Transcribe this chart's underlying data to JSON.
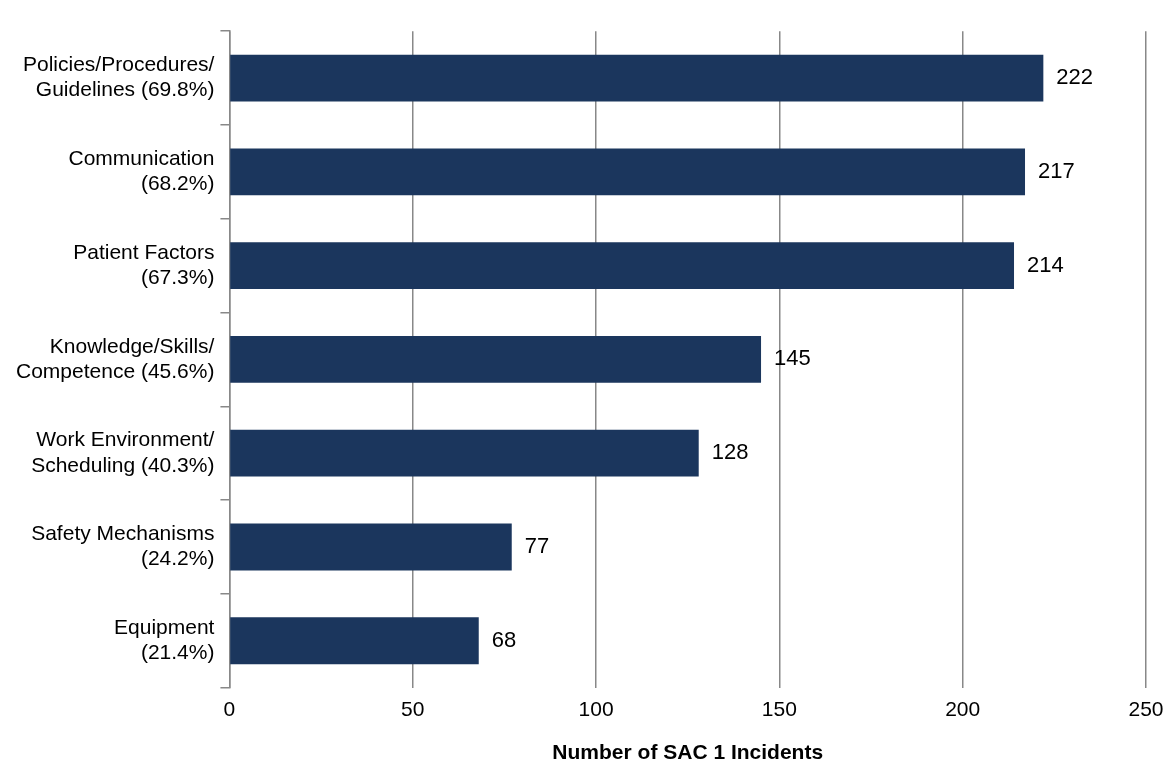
{
  "chart_data": {
    "type": "bar",
    "orientation": "horizontal",
    "xlabel": "Number of SAC 1 Incidents",
    "categories": [
      "Policies/Procedures/\nGuidelines (69.8%)",
      "Communication\n(68.2%)",
      "Patient Factors\n(67.3%)",
      "Knowledge/Skills/\nCompetence (45.6%)",
      "Work Environment/\nScheduling (40.3%)",
      "Safety Mechanisms\n(24.2%)",
      "Equipment\n(21.4%)"
    ],
    "values": [
      222,
      217,
      214,
      145,
      128,
      77,
      68
    ],
    "color": "#1b365d",
    "xlim": [
      0,
      250
    ],
    "xticks": [
      0,
      50,
      100,
      150,
      200,
      250
    ],
    "grid": "x",
    "data_labels": true,
    "legend": false
  }
}
